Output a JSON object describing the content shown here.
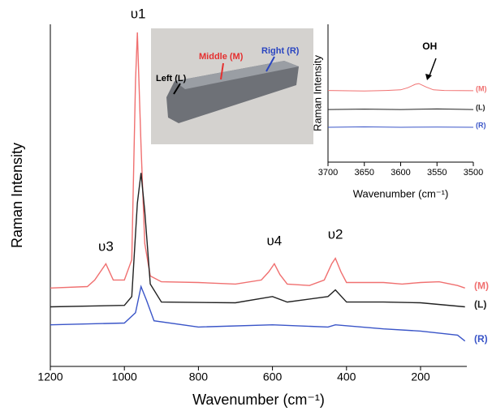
{
  "chart_data": [
    {
      "type": "line",
      "xlabel": "Wavenumber (cm⁻¹)",
      "ylabel": "Raman Intensity",
      "xlim": [
        1200,
        75
      ],
      "xticks": [
        1200,
        1000,
        800,
        600,
        400,
        200
      ],
      "ylim": [
        7,
        100
      ],
      "annotations": [
        "υ1",
        "υ3",
        "υ4",
        "υ2"
      ],
      "series": [
        {
          "name": "(M)",
          "color": "#f07070",
          "x": [
            1200,
            1100,
            1080,
            1050,
            1030,
            1000,
            980,
            970,
            965,
            955,
            945,
            930,
            900,
            800,
            700,
            630,
            610,
            595,
            580,
            560,
            500,
            460,
            440,
            430,
            415,
            400,
            300,
            250,
            200,
            150,
            100,
            80
          ],
          "values": [
            28.3,
            28.7,
            30.5,
            34.9,
            30.5,
            30.5,
            36,
            84.5,
            97.8,
            67,
            40.4,
            31.6,
            30,
            29.8,
            29.4,
            30.5,
            32.7,
            34.9,
            32,
            29.4,
            29,
            30.5,
            34.9,
            36.4,
            32.7,
            29.8,
            29.8,
            29.4,
            29.8,
            30,
            29,
            28.3
          ]
        },
        {
          "name": "(L)",
          "color": "#222222",
          "x": [
            1200,
            1000,
            980,
            965,
            955,
            945,
            930,
            900,
            700,
            600,
            560,
            450,
            430,
            400,
            300,
            200,
            80
          ],
          "values": [
            23.2,
            23.6,
            26,
            51.4,
            59.6,
            49.2,
            29.4,
            24.5,
            24.3,
            26,
            24.5,
            26,
            27.8,
            24.5,
            24.5,
            24.3,
            23.2
          ]
        },
        {
          "name": "(R)",
          "color": "#3a55c8",
          "x": [
            1200,
            1000,
            970,
            955,
            940,
            920,
            800,
            600,
            450,
            430,
            300,
            200,
            100,
            80
          ],
          "values": [
            18.3,
            18.8,
            21.6,
            28.7,
            24.9,
            19.4,
            17.7,
            18.3,
            17.7,
            18.3,
            17.2,
            16.6,
            15.5,
            13.9
          ]
        }
      ]
    },
    {
      "type": "line",
      "xlabel": "Wavenumber (cm⁻¹)",
      "ylabel": "Raman Intensity",
      "xlim": [
        3700,
        3500
      ],
      "xticks": [
        3700,
        3650,
        3600,
        3550,
        3500
      ],
      "ylim": [
        0,
        100
      ],
      "annotations": [
        "OH"
      ],
      "series": [
        {
          "name": "(M)",
          "color": "#f07070",
          "x": [
            3700,
            3650,
            3620,
            3600,
            3590,
            3580,
            3575,
            3565,
            3555,
            3540,
            3500
          ],
          "values": [
            52,
            51.6,
            52,
            52.5,
            54,
            56.5,
            57,
            54.5,
            52.5,
            52,
            51.8
          ]
        },
        {
          "name": "(L)",
          "color": "#222222",
          "x": [
            3700,
            3650,
            3600,
            3550,
            3500
          ],
          "values": [
            38.2,
            38.5,
            38.2,
            38.6,
            38.2
          ]
        },
        {
          "name": "(R)",
          "color": "#3a55c8",
          "x": [
            3700,
            3650,
            3600,
            3550,
            3500
          ],
          "values": [
            25.3,
            25.6,
            25.3,
            25.5,
            25.3
          ]
        }
      ]
    }
  ],
  "photo": {
    "labels": [
      "Left (L)",
      "Middle (M)",
      "Right (R)"
    ]
  }
}
